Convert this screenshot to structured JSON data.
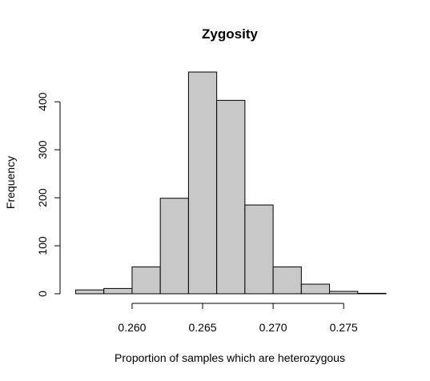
{
  "chart_data": {
    "type": "bar",
    "title": "Zygosity",
    "xlabel": "Proportion of samples which are heterozygous",
    "ylabel": "Frequency",
    "bin_edges": [
      0.256,
      0.258,
      0.26,
      0.262,
      0.264,
      0.266,
      0.268,
      0.27,
      0.272,
      0.274,
      0.276,
      0.278
    ],
    "values": [
      8,
      11,
      56,
      199,
      462,
      403,
      185,
      56,
      20,
      5,
      1
    ],
    "x_ticks": [
      0.26,
      0.265,
      0.27,
      0.275
    ],
    "x_tick_labels": [
      "0.260",
      "0.265",
      "0.270",
      "0.275"
    ],
    "y_ticks": [
      0,
      100,
      200,
      300,
      400
    ],
    "y_tick_labels": [
      "0",
      "100",
      "200",
      "300",
      "400"
    ],
    "xlim": [
      0.256,
      0.278
    ],
    "ylim": [
      0,
      462
    ],
    "bar_fill": "#c8c8c8",
    "bar_stroke": "#000000",
    "grid": false
  }
}
